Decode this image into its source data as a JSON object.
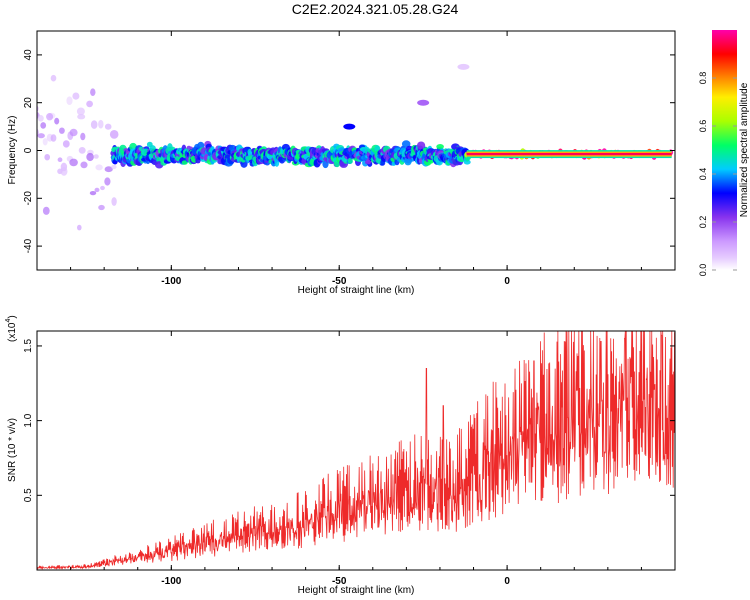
{
  "title": "C2E2.2024.321.05.28.G24",
  "colors": {
    "snr_line": "#ee2a2a",
    "axis": "#000000",
    "colormap": [
      "#ffffff",
      "#cc99ff",
      "#8833ee",
      "#0000ff",
      "#00ccff",
      "#00ff66",
      "#aaff00",
      "#ffee00",
      "#ff8800",
      "#ff0000",
      "#ff00aa"
    ]
  },
  "chart_data": [
    {
      "type": "heatmap",
      "title": "",
      "xlabel": "Height of straight line (km)",
      "ylabel": "Frequency (Hz)",
      "xlim": [
        -140,
        50
      ],
      "ylim": [
        -50,
        50
      ],
      "xticks": [
        -100,
        -50,
        0
      ],
      "yticks": [
        -40,
        -20,
        0,
        20,
        40
      ],
      "colorbar": {
        "label": "Normalized spectral amplitude",
        "range": [
          0,
          1
        ],
        "ticks": [
          "0.0",
          "0.2",
          "0.4",
          "0.6",
          "0.8"
        ]
      },
      "description_bands": [
        {
          "x_from": -140,
          "x_to": -117,
          "freq_center": 0,
          "freq_spread": 50,
          "amplitude": 0.08
        },
        {
          "x_from": -117,
          "x_to": -12,
          "freq_center": -2,
          "freq_spread": 6,
          "amplitude": 0.35
        },
        {
          "x_from": -12,
          "x_to": 49,
          "freq_center": -1.5,
          "freq_spread": 2,
          "amplitude": 0.95
        }
      ],
      "outliers": [
        {
          "x": -47,
          "freq": 10,
          "amplitude": 0.3
        },
        {
          "x": -25,
          "freq": 20,
          "amplitude": 0.15
        },
        {
          "x": -13,
          "freq": 35,
          "amplitude": 0.05
        }
      ]
    },
    {
      "type": "line",
      "title": "",
      "xlabel": "Height of straight line (km)",
      "ylabel": "SNR (10 * v/v)",
      "y_multiplier": "(x10",
      "y_multiplier_exp": "4",
      "y_multiplier_close": ")",
      "xlim": [
        -140,
        50
      ],
      "ylim": [
        0,
        16000
      ],
      "xticks": [
        -100,
        -50,
        0
      ],
      "yticks": [
        5000,
        10000,
        15000
      ],
      "ytick_labels": [
        "0.5",
        "1.0",
        "1.5"
      ],
      "series": [
        {
          "name": "",
          "envelope_x": [
            -140,
            -125,
            -115,
            -100,
            -90,
            -80,
            -70,
            -60,
            -50,
            -40,
            -30,
            -20,
            -15,
            -10,
            -5,
            0,
            5,
            10,
            15,
            20,
            25,
            30,
            35,
            40,
            45,
            49
          ],
          "envelope_y": [
            200,
            300,
            900,
            1700,
            2400,
            3000,
            3600,
            4200,
            5200,
            6000,
            6800,
            7200,
            7200,
            8500,
            9500,
            10500,
            11500,
            12200,
            12800,
            13300,
            13800,
            14200,
            14500,
            14700,
            14800,
            14900
          ],
          "peaks_x": [
            -24,
            -19,
            8,
            28,
            35,
            46
          ],
          "peaks_y": [
            13500,
            11000,
            14000,
            15300,
            15500,
            15700
          ]
        }
      ]
    }
  ]
}
